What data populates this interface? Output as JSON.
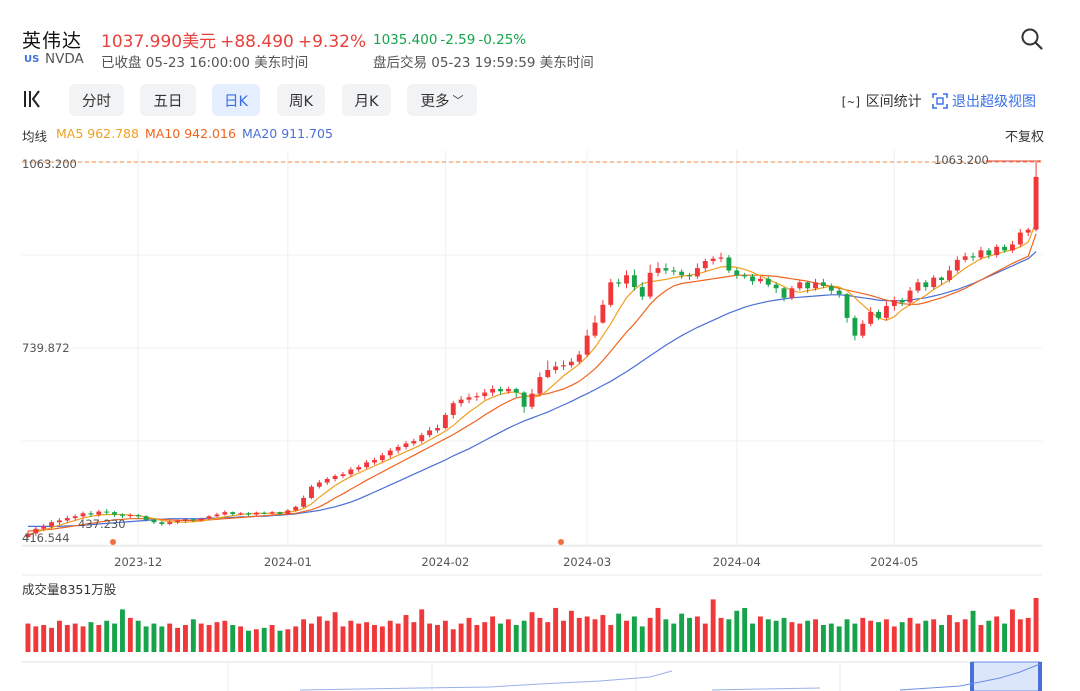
{
  "header": {
    "name": "英伟达",
    "price": "1037.990美元",
    "change": "+88.490",
    "change_pct": "+9.32%",
    "after_price": "1035.400",
    "after_change": "-2.59",
    "after_pct": "-0.25%",
    "market": "US",
    "ticker": "NVDA",
    "status": "已收盘 05-23 16:00:00 美东时间",
    "after_status": "盘后交易 05-23 19:59:59 美东时间"
  },
  "toolbar": {
    "tabs": [
      {
        "label": "分时"
      },
      {
        "label": "五日"
      },
      {
        "label": "日K"
      },
      {
        "label": "周K"
      },
      {
        "label": "月K"
      },
      {
        "label": "更多"
      }
    ],
    "stats_label": "区间统计",
    "stats_bracket": "[~]",
    "exit_label": "退出超级视图"
  },
  "indicators": {
    "label": "均线",
    "ma5": "MA5 962.788",
    "ma10": "MA10 942.016",
    "ma20": "MA20 911.705",
    "adjust": "不复权"
  },
  "volume": {
    "label": "成交量8351万股"
  },
  "colors": {
    "up": "#f0373a",
    "down": "#16a34a",
    "ma5": "#f0a020",
    "ma10": "#f0641e",
    "ma20": "#4a6fd8",
    "accent": "#3a6fe8"
  },
  "chart_data": {
    "type": "candlestick",
    "price_labels": {
      "top": "1063.200",
      "mid": "739.872",
      "bottom": "416.544",
      "max_marker": "1063.200",
      "min_marker": "437.230"
    },
    "ylim": [
      416.544,
      1063.2
    ],
    "x_tick_labels": [
      "2023-12",
      "2024-01",
      "2024-02",
      "2024-03",
      "2024-04",
      "2024-05"
    ],
    "x_tick_index": [
      14,
      33,
      53,
      71,
      90,
      110
    ],
    "reference_line": 1063.2,
    "candles": [
      [
        430,
        436,
        440,
        428
      ],
      [
        436,
        444,
        448,
        432
      ],
      [
        444,
        448,
        452,
        440
      ],
      [
        448,
        455,
        458,
        444
      ],
      [
        455,
        458,
        462,
        451
      ],
      [
        458,
        462,
        466,
        454
      ],
      [
        462,
        465,
        468,
        458
      ],
      [
        465,
        470,
        473,
        461
      ],
      [
        470,
        468,
        474,
        464
      ],
      [
        468,
        473,
        476,
        464
      ],
      [
        473,
        472,
        477,
        468
      ],
      [
        472,
        468,
        474,
        464
      ],
      [
        468,
        466,
        470,
        462
      ],
      [
        466,
        467,
        470,
        462
      ],
      [
        467,
        465,
        469,
        461
      ],
      [
        465,
        459,
        467,
        456
      ],
      [
        459,
        455,
        461,
        452
      ],
      [
        455,
        452,
        457,
        449
      ],
      [
        452,
        455,
        458,
        450
      ],
      [
        455,
        457,
        460,
        452
      ],
      [
        457,
        460,
        462,
        454
      ],
      [
        460,
        458,
        462,
        455
      ],
      [
        458,
        461,
        463,
        456
      ],
      [
        461,
        465,
        467,
        458
      ],
      [
        465,
        468,
        471,
        463
      ],
      [
        468,
        472,
        475,
        466
      ],
      [
        472,
        469,
        473,
        466
      ],
      [
        469,
        470,
        472,
        467
      ],
      [
        470,
        468,
        472,
        465
      ],
      [
        468,
        471,
        473,
        466
      ],
      [
        471,
        470,
        473,
        468
      ],
      [
        470,
        472,
        474,
        468
      ],
      [
        472,
        469,
        473,
        466
      ],
      [
        469,
        475,
        477,
        467
      ],
      [
        475,
        481,
        483,
        473
      ],
      [
        481,
        496,
        500,
        479
      ],
      [
        496,
        515,
        518,
        494
      ],
      [
        515,
        522,
        526,
        512
      ],
      [
        522,
        528,
        531,
        518
      ],
      [
        528,
        533,
        536,
        524
      ],
      [
        533,
        536,
        540,
        530
      ],
      [
        536,
        544,
        548,
        532
      ],
      [
        544,
        548,
        552,
        540
      ],
      [
        548,
        556,
        560,
        545
      ],
      [
        556,
        560,
        564,
        552
      ],
      [
        560,
        568,
        572,
        556
      ],
      [
        568,
        576,
        580,
        563
      ],
      [
        576,
        582,
        586,
        571
      ],
      [
        582,
        588,
        592,
        578
      ],
      [
        588,
        592,
        596,
        584
      ],
      [
        592,
        602,
        606,
        588
      ],
      [
        602,
        610,
        616,
        598
      ],
      [
        610,
        614,
        620,
        606
      ],
      [
        614,
        636,
        640,
        612
      ],
      [
        636,
        656,
        660,
        630
      ],
      [
        656,
        662,
        668,
        650
      ],
      [
        662,
        666,
        672,
        656
      ],
      [
        666,
        668,
        674,
        660
      ],
      [
        668,
        674,
        680,
        662
      ],
      [
        674,
        680,
        686,
        668
      ],
      [
        680,
        676,
        684,
        670
      ],
      [
        676,
        680,
        684,
        672
      ],
      [
        680,
        674,
        682,
        666
      ],
      [
        674,
        650,
        676,
        640
      ],
      [
        650,
        672,
        680,
        646
      ],
      [
        672,
        700,
        708,
        668
      ],
      [
        700,
        712,
        728,
        698
      ],
      [
        712,
        718,
        726,
        706
      ],
      [
        718,
        720,
        728,
        712
      ],
      [
        720,
        726,
        732,
        716
      ],
      [
        726,
        738,
        744,
        722
      ],
      [
        738,
        770,
        780,
        734
      ],
      [
        770,
        792,
        804,
        766
      ],
      [
        792,
        822,
        830,
        790
      ],
      [
        822,
        860,
        866,
        818
      ],
      [
        860,
        858,
        866,
        852
      ],
      [
        858,
        872,
        880,
        850
      ],
      [
        872,
        852,
        882,
        846
      ],
      [
        852,
        836,
        860,
        830
      ],
      [
        836,
        876,
        890,
        832
      ],
      [
        876,
        884,
        894,
        870
      ],
      [
        884,
        880,
        892,
        874
      ],
      [
        880,
        878,
        886,
        872
      ],
      [
        878,
        872,
        882,
        866
      ],
      [
        872,
        870,
        876,
        864
      ],
      [
        870,
        884,
        892,
        866
      ],
      [
        884,
        896,
        900,
        878
      ],
      [
        896,
        900,
        904,
        890
      ],
      [
        900,
        902,
        910,
        894
      ],
      [
        902,
        880,
        906,
        876
      ],
      [
        880,
        872,
        884,
        866
      ],
      [
        872,
        870,
        876,
        866
      ],
      [
        870,
        862,
        874,
        856
      ],
      [
        862,
        866,
        870,
        858
      ],
      [
        866,
        856,
        870,
        852
      ],
      [
        856,
        850,
        860,
        842
      ],
      [
        850,
        834,
        852,
        828
      ],
      [
        834,
        850,
        854,
        830
      ],
      [
        850,
        860,
        864,
        846
      ],
      [
        860,
        850,
        862,
        842
      ],
      [
        850,
        860,
        866,
        846
      ],
      [
        860,
        854,
        866,
        850
      ],
      [
        854,
        846,
        858,
        840
      ],
      [
        846,
        840,
        850,
        834
      ],
      [
        840,
        800,
        842,
        792
      ],
      [
        800,
        770,
        804,
        762
      ],
      [
        770,
        790,
        796,
        766
      ],
      [
        790,
        810,
        818,
        786
      ],
      [
        810,
        800,
        814,
        796
      ],
      [
        800,
        820,
        828,
        796
      ],
      [
        820,
        830,
        836,
        812
      ],
      [
        830,
        826,
        834,
        820
      ],
      [
        826,
        846,
        852,
        820
      ],
      [
        846,
        860,
        866,
        842
      ],
      [
        860,
        852,
        864,
        846
      ],
      [
        852,
        868,
        872,
        848
      ],
      [
        868,
        864,
        870,
        856
      ],
      [
        864,
        880,
        888,
        860
      ],
      [
        880,
        898,
        904,
        876
      ],
      [
        898,
        904,
        910,
        894
      ],
      [
        904,
        902,
        910,
        896
      ],
      [
        902,
        914,
        920,
        898
      ],
      [
        914,
        906,
        918,
        900
      ],
      [
        906,
        920,
        924,
        902
      ],
      [
        920,
        914,
        924,
        910
      ],
      [
        914,
        924,
        930,
        910
      ],
      [
        924,
        944,
        950,
        920
      ],
      [
        944,
        949,
        952,
        938
      ],
      [
        949,
        1038,
        1063,
        946
      ]
    ],
    "ma5": [
      434,
      438,
      442,
      446,
      450,
      454,
      458,
      462,
      465,
      467,
      468,
      468,
      468,
      467,
      466,
      464,
      461,
      458,
      456,
      455,
      455,
      456,
      457,
      459,
      462,
      464,
      466,
      468,
      469,
      470,
      470,
      470,
      471,
      472,
      474,
      478,
      486,
      497,
      507,
      517,
      525,
      532,
      538,
      544,
      550,
      556,
      562,
      568,
      574,
      580,
      586,
      594,
      601,
      609,
      618,
      630,
      641,
      650,
      660,
      666,
      671,
      674,
      675,
      670,
      666,
      668,
      678,
      690,
      702,
      712,
      722,
      735,
      750,
      770,
      790,
      813,
      834,
      848,
      858,
      861,
      863,
      865,
      868,
      870,
      872,
      874,
      878,
      882,
      886,
      887,
      885,
      882,
      877,
      871,
      865,
      859,
      853,
      846,
      843,
      846,
      848,
      851,
      854,
      852,
      846,
      834,
      822,
      810,
      800,
      796,
      802,
      814,
      822,
      830,
      838,
      848,
      856,
      864,
      874,
      884,
      892,
      900,
      904,
      908,
      912,
      915,
      920,
      928,
      962
    ],
    "ma10": [
      440,
      441,
      442,
      443,
      445,
      447,
      449,
      451,
      453,
      455,
      457,
      459,
      460,
      461,
      461,
      461,
      461,
      460,
      459,
      458,
      458,
      458,
      459,
      459,
      460,
      461,
      462,
      463,
      464,
      465,
      466,
      467,
      468,
      469,
      470,
      473,
      476,
      481,
      488,
      496,
      503,
      511,
      518,
      526,
      533,
      540,
      547,
      554,
      561,
      568,
      575,
      582,
      589,
      596,
      603,
      611,
      619,
      627,
      636,
      644,
      652,
      659,
      665,
      667,
      669,
      670,
      672,
      676,
      680,
      686,
      693,
      703,
      714,
      728,
      744,
      760,
      776,
      790,
      806,
      823,
      836,
      846,
      854,
      858,
      860,
      862,
      864,
      866,
      868,
      870,
      872,
      872,
      872,
      872,
      871,
      870,
      868,
      866,
      864,
      862,
      859,
      856,
      853,
      850,
      847,
      844,
      841,
      838,
      834,
      830,
      827,
      824,
      823,
      823,
      826,
      830,
      834,
      839,
      844,
      850,
      857,
      864,
      871,
      878,
      885,
      892,
      898,
      904,
      942
    ],
    "ma20": [
      448,
      448,
      448,
      448,
      448,
      449,
      449,
      450,
      451,
      452,
      453,
      454,
      455,
      456,
      457,
      458,
      459,
      460,
      461,
      461,
      461,
      461,
      461,
      462,
      462,
      463,
      463,
      464,
      464,
      465,
      465,
      466,
      467,
      468,
      469,
      471,
      473,
      475,
      478,
      481,
      485,
      489,
      494,
      500,
      506,
      512,
      518,
      524,
      530,
      536,
      542,
      548,
      554,
      560,
      567,
      573,
      579,
      586,
      593,
      600,
      607,
      614,
      620,
      626,
      631,
      636,
      641,
      647,
      653,
      659,
      666,
      672,
      679,
      686,
      693,
      701,
      709,
      718,
      727,
      736,
      745,
      754,
      762,
      770,
      777,
      784,
      790,
      796,
      802,
      808,
      813,
      818,
      822,
      825,
      828,
      830,
      832,
      834,
      835,
      836,
      837,
      838,
      839,
      839,
      838,
      836,
      834,
      832,
      830,
      829,
      829,
      829,
      830,
      832,
      834,
      837,
      840,
      844,
      848,
      853,
      858,
      864,
      870,
      876,
      882,
      888,
      894,
      900,
      912
    ],
    "volume": [
      40,
      36,
      38,
      34,
      44,
      38,
      40,
      36,
      42,
      38,
      44,
      40,
      60,
      48,
      44,
      36,
      40,
      36,
      40,
      34,
      38,
      46,
      40,
      38,
      42,
      44,
      38,
      36,
      30,
      32,
      34,
      38,
      30,
      32,
      36,
      46,
      40,
      50,
      44,
      56,
      36,
      44,
      40,
      42,
      38,
      36,
      44,
      40,
      52,
      42,
      60,
      40,
      38,
      44,
      32,
      40,
      48,
      38,
      42,
      50,
      40,
      46,
      38,
      44,
      56,
      48,
      42,
      62,
      44,
      58,
      48,
      50,
      46,
      52,
      38,
      54,
      44,
      50,
      36,
      48,
      62,
      46,
      40,
      54,
      48,
      50,
      40,
      74,
      48,
      46,
      58,
      62,
      40,
      50,
      46,
      44,
      48,
      42,
      40,
      44,
      46,
      38,
      40,
      36,
      46,
      40,
      48,
      44,
      42,
      46,
      36,
      42,
      48,
      40,
      44,
      46,
      38,
      52,
      42,
      46,
      58,
      38,
      44,
      50,
      40,
      60,
      46,
      48,
      76
    ]
  }
}
